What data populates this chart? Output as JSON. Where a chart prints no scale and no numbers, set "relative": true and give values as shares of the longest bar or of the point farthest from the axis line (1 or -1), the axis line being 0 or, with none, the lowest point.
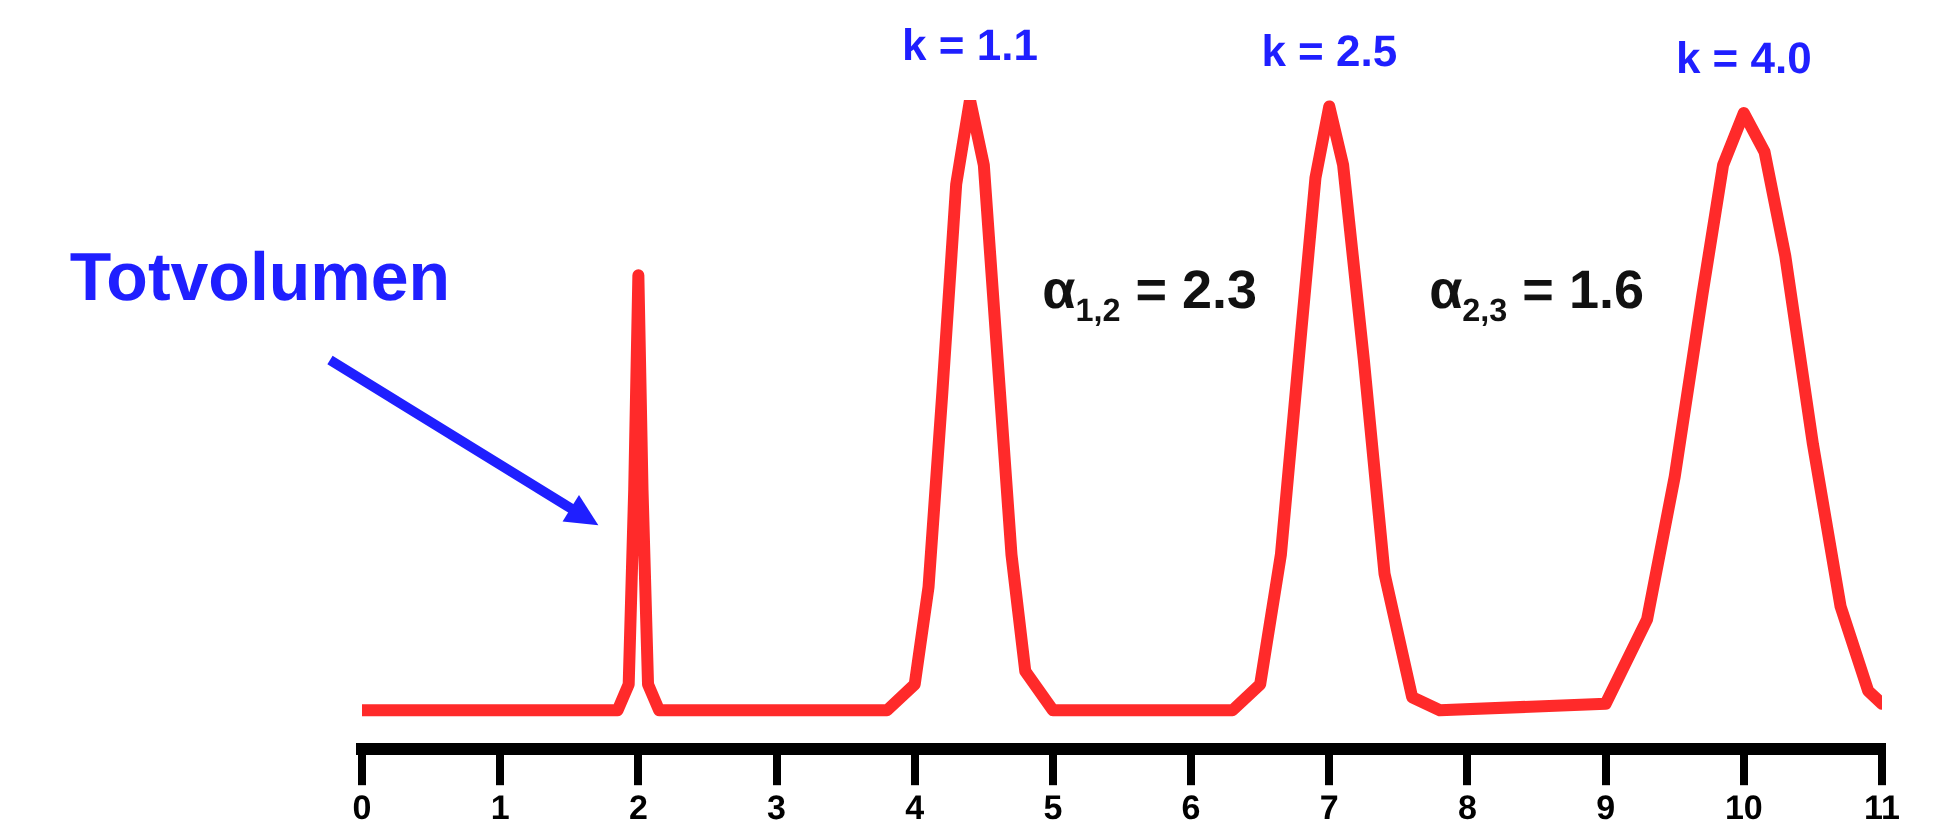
{
  "chart_data": {
    "type": "line",
    "relative": true,
    "xlim": [
      0,
      11
    ],
    "xticks": [
      0,
      1,
      2,
      3,
      4,
      5,
      6,
      7,
      8,
      9,
      10,
      11
    ],
    "series": [
      {
        "color": "#ff2a2a",
        "x": [
          0,
          1.85,
          1.93,
          1.97,
          2.0,
          2.03,
          2.07,
          2.15,
          3.8,
          4.0,
          4.1,
          4.2,
          4.3,
          4.4,
          4.5,
          4.6,
          4.7,
          4.8,
          5.0,
          6.3,
          6.5,
          6.65,
          6.8,
          6.9,
          7.0,
          7.1,
          7.25,
          7.4,
          7.6,
          7.8,
          9.0,
          9.3,
          9.5,
          9.7,
          9.85,
          10.0,
          10.15,
          10.3,
          10.5,
          10.7,
          10.9,
          11.0
        ],
        "values": [
          0.06,
          0.06,
          0.1,
          0.4,
          0.73,
          0.4,
          0.1,
          0.06,
          0.06,
          0.1,
          0.25,
          0.55,
          0.87,
          1.0,
          0.9,
          0.6,
          0.3,
          0.12,
          0.06,
          0.06,
          0.1,
          0.3,
          0.65,
          0.88,
          0.99,
          0.9,
          0.6,
          0.27,
          0.08,
          0.06,
          0.07,
          0.2,
          0.42,
          0.7,
          0.9,
          0.98,
          0.92,
          0.76,
          0.47,
          0.22,
          0.09,
          0.07
        ]
      }
    ],
    "annotations": [
      {
        "text": "Totvolumen",
        "x": 2,
        "y": 0.73
      },
      {
        "text": "k = 1.1",
        "x": 4.4,
        "y": 1.0
      },
      {
        "text": "k = 2.5",
        "x": 7.0,
        "y": 0.99
      },
      {
        "text": "k = 4.0",
        "x": 10.0,
        "y": 0.98
      },
      "α$_{1,2}$ = 2.3",
      "α$_{2,3}$ = 1.6"
    ]
  }
}
